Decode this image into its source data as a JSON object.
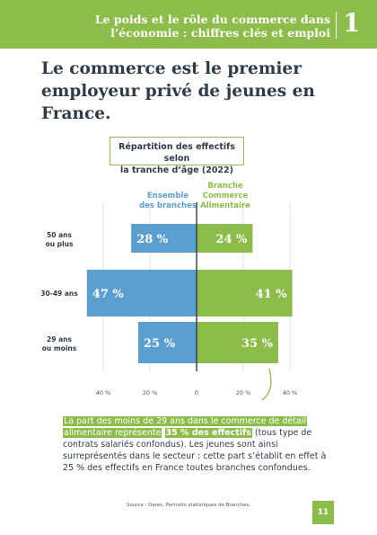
{
  "header": {
    "title_line1": "Le poids et le rôle du commerce dans",
    "title_line2": "l’économie : chiffres clés et emploi",
    "chapter": "1"
  },
  "headline": "Le commerce est le premier employeur privé de jeunes en France.",
  "chart_data": {
    "type": "bar",
    "orientation": "horizontal-pyramid",
    "title_line1": "Répartition des effectifs selon",
    "title_line2": "la tranche d’âge (2022)",
    "categories": [
      {
        "line1": "50 ans",
        "line2": "ou plus"
      },
      {
        "line1": "30-49 ans",
        "line2": ""
      },
      {
        "line1": "29 ans",
        "line2": "ou moins"
      }
    ],
    "series": [
      {
        "name_line1": "Ensemble",
        "name_line2": "des branches",
        "color": "#5b9fd0",
        "side": "left",
        "values": [
          28,
          47,
          25
        ],
        "labels": [
          "28 %",
          "47 %",
          "25 %"
        ]
      },
      {
        "name_line1": "Branche",
        "name_line2": "Commerce",
        "name_line3": "Alimentaire",
        "color": "#8cbd4a",
        "side": "right",
        "values": [
          24,
          41,
          35
        ],
        "labels": [
          "24 %",
          "41 %",
          "35 %"
        ]
      }
    ],
    "xlim": [
      -40,
      40
    ],
    "ticks": [
      -40,
      -20,
      0,
      20,
      40
    ],
    "tick_labels": [
      "40 %",
      "20 %",
      "0",
      "20 %",
      "40 %"
    ],
    "grid": true
  },
  "text": {
    "hl1": "La part des moins de 29 ans dans le commerce de détail",
    "hl2": "alimentaire représente",
    "hl_bold": "35 % des effectifs",
    "rest1": " (tous type de contrats salariés confondus). Les jeunes sont ainsi surreprésentés dans le secteur : cette part s’établit en effet à 25 % des effectifs en France toutes branches confondues."
  },
  "source": "Source : Dares, Portraits statistiques de Branches.",
  "page_number": "11",
  "colors": {
    "green": "#8cbd4a",
    "blue": "#5b9fd0",
    "navy": "#2f3c48"
  }
}
